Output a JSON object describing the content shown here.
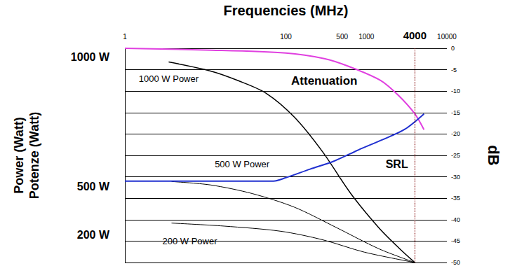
{
  "chart_data": {
    "type": "line",
    "xlabel": "Frequencies (MHz)",
    "ylabel": "dB",
    "y2label": "Power (Watt)\nPotenze (Watt)",
    "log": "x",
    "grid": true,
    "xlim": [
      1,
      10000
    ],
    "xticks": [
      1,
      100,
      500,
      1000,
      4000,
      10000
    ],
    "ylim": [
      -50,
      0
    ],
    "yticks": [
      -50,
      -45,
      -40,
      -35,
      -30,
      -25,
      -20,
      -15,
      -10,
      -5,
      0
    ],
    "y2lim": [
      -50,
      0
    ],
    "y2ticks": [
      {
        "value": -2,
        "label": "1000 W"
      },
      {
        "value": -32.3,
        "label": "500 W"
      },
      {
        "value": -43.5,
        "label": "200 W"
      }
    ],
    "vertical_line": 4000,
    "series": [
      {
        "name": "Attenuation",
        "color": "#e040e0",
        "x": [
          1,
          10,
          100,
          300,
          600,
          1500,
          2500,
          4000,
          5200
        ],
        "values": [
          0,
          -0.4,
          -1.1,
          -2.4,
          -4.2,
          -7.5,
          -11,
          -15.3,
          -19
        ]
      },
      {
        "name": "SRL",
        "color": "#2030d0",
        "x": [
          1,
          70,
          100,
          200,
          400,
          800,
          1600,
          3000,
          5200
        ],
        "values": [
          -31,
          -31,
          -30.2,
          -28.2,
          -26.3,
          -23.7,
          -21.3,
          -18.9,
          -15.3
        ]
      },
      {
        "name": "1000 W Power",
        "color": "#000000",
        "axis": "y2",
        "x": [
          3.5,
          11.6,
          26,
          57,
          128,
          287,
          640,
          1430,
          2600,
          4000
        ],
        "values": [
          -3.2,
          -5.3,
          -7.6,
          -10.5,
          -16.1,
          -24.2,
          -33.9,
          -41.9,
          -46.8,
          -50
        ]
      },
      {
        "name": "500 W Power",
        "color": "#000000",
        "axis": "y2",
        "x": [
          3.8,
          11.6,
          38,
          128,
          430,
          1430,
          4000
        ],
        "values": [
          -31.1,
          -31.9,
          -33.9,
          -37.1,
          -41.9,
          -46.8,
          -50
        ]
      },
      {
        "name": "200 W Power",
        "color": "#000000",
        "axis": "y2",
        "x": [
          3.8,
          17,
          86,
          287,
          950,
          4000
        ],
        "values": [
          -40.8,
          -41.5,
          -42.7,
          -44.7,
          -47.6,
          -50
        ]
      }
    ]
  }
}
